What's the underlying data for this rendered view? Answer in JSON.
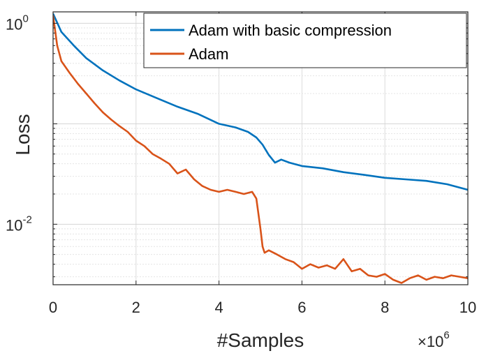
{
  "chart_data": {
    "type": "line",
    "xlabel": "#Samples",
    "ylabel": "Loss",
    "x_multiplier_label": "×10",
    "x_multiplier_exponent": "6",
    "xlim": [
      0,
      10
    ],
    "ylim": [
      0.0025,
      1.3
    ],
    "y_scale": "log",
    "grid": true,
    "legend_position": "top-right",
    "x_ticks": [
      {
        "value": 0,
        "label": "0"
      },
      {
        "value": 2,
        "label": "2"
      },
      {
        "value": 4,
        "label": "4"
      },
      {
        "value": 6,
        "label": "6"
      },
      {
        "value": 8,
        "label": "8"
      },
      {
        "value": 10,
        "label": "10"
      }
    ],
    "y_ticks": [
      {
        "value": 1,
        "base": "10",
        "exponent": "0"
      },
      {
        "value": 0.01,
        "base": "10",
        "exponent": "-2"
      }
    ],
    "series": [
      {
        "name": "Adam with basic compression",
        "color": "#0072BD",
        "x": [
          0,
          0.2,
          0.5,
          0.8,
          1.2,
          1.6,
          2.0,
          2.5,
          3.0,
          3.5,
          4.0,
          4.4,
          4.7,
          4.9,
          5.05,
          5.2,
          5.35,
          5.5,
          5.7,
          6.0,
          6.5,
          7.0,
          7.5,
          8.0,
          8.5,
          9.0,
          9.5,
          10.0
        ],
        "y": [
          1.25,
          0.82,
          0.6,
          0.45,
          0.34,
          0.27,
          0.22,
          0.18,
          0.148,
          0.125,
          0.1,
          0.092,
          0.083,
          0.073,
          0.062,
          0.049,
          0.041,
          0.044,
          0.041,
          0.038,
          0.036,
          0.033,
          0.031,
          0.029,
          0.028,
          0.027,
          0.025,
          0.022
        ]
      },
      {
        "name": "Adam",
        "color": "#D95319",
        "x": [
          0,
          0.1,
          0.2,
          0.4,
          0.6,
          0.8,
          1.0,
          1.2,
          1.4,
          1.6,
          1.8,
          2.0,
          2.2,
          2.4,
          2.6,
          2.8,
          3.0,
          3.2,
          3.4,
          3.6,
          3.8,
          4.0,
          4.2,
          4.4,
          4.6,
          4.8,
          4.9,
          5.0,
          5.05,
          5.1,
          5.2,
          5.4,
          5.6,
          5.8,
          6.0,
          6.2,
          6.4,
          6.6,
          6.8,
          7.0,
          7.2,
          7.4,
          7.6,
          7.8,
          8.0,
          8.2,
          8.4,
          8.6,
          8.8,
          9.0,
          9.2,
          9.4,
          9.6,
          9.8,
          10.0
        ],
        "y": [
          1.2,
          0.6,
          0.42,
          0.32,
          0.25,
          0.2,
          0.16,
          0.13,
          0.11,
          0.095,
          0.083,
          0.068,
          0.06,
          0.05,
          0.045,
          0.04,
          0.032,
          0.035,
          0.028,
          0.024,
          0.022,
          0.021,
          0.022,
          0.021,
          0.02,
          0.021,
          0.018,
          0.009,
          0.006,
          0.0052,
          0.0055,
          0.005,
          0.0045,
          0.0042,
          0.0036,
          0.004,
          0.0037,
          0.0039,
          0.0036,
          0.0045,
          0.0034,
          0.0036,
          0.0031,
          0.003,
          0.0032,
          0.0028,
          0.0026,
          0.0029,
          0.0031,
          0.0028,
          0.003,
          0.0029,
          0.0031,
          0.003,
          0.0029
        ]
      }
    ]
  }
}
